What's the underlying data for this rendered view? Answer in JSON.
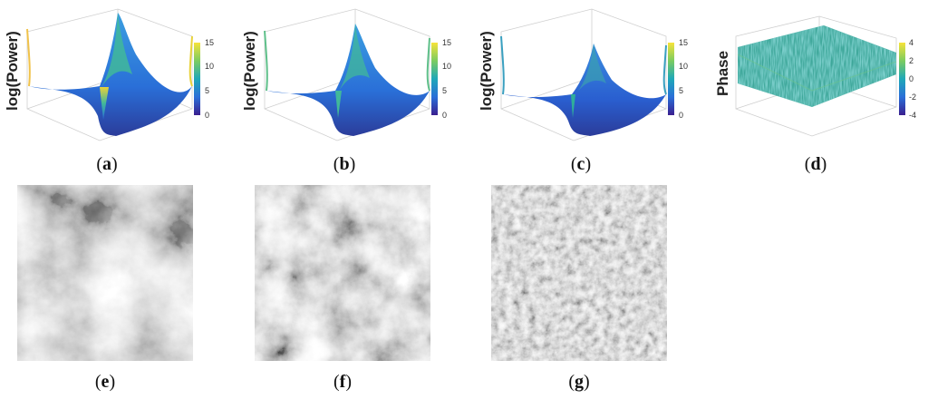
{
  "panels": [
    {
      "id": "a",
      "caption": "a",
      "ylabel": "log(Power)",
      "colorbar_ticks": [
        "15",
        "10",
        "5",
        "0"
      ]
    },
    {
      "id": "b",
      "caption": "b",
      "ylabel": "log(Power)",
      "colorbar_ticks": [
        "15",
        "10",
        "5",
        "0"
      ]
    },
    {
      "id": "c",
      "caption": "c",
      "ylabel": "log(Power)",
      "colorbar_ticks": [
        "15",
        "10",
        "5",
        "0"
      ]
    },
    {
      "id": "d",
      "caption": "d",
      "ylabel": "Phase",
      "colorbar_ticks": [
        "4",
        "2",
        "0",
        "-2",
        "-4"
      ]
    }
  ],
  "images": [
    {
      "id": "e",
      "caption": "e"
    },
    {
      "id": "f",
      "caption": "f"
    },
    {
      "id": "g",
      "caption": "g"
    }
  ],
  "colors": {
    "surface_blue": "#2a6fd8",
    "surface_dark": "#2b3c9a",
    "peak_yellow": "#e8d23a",
    "peak_green": "#41b89a",
    "phase_teal": "#3ea79a"
  }
}
